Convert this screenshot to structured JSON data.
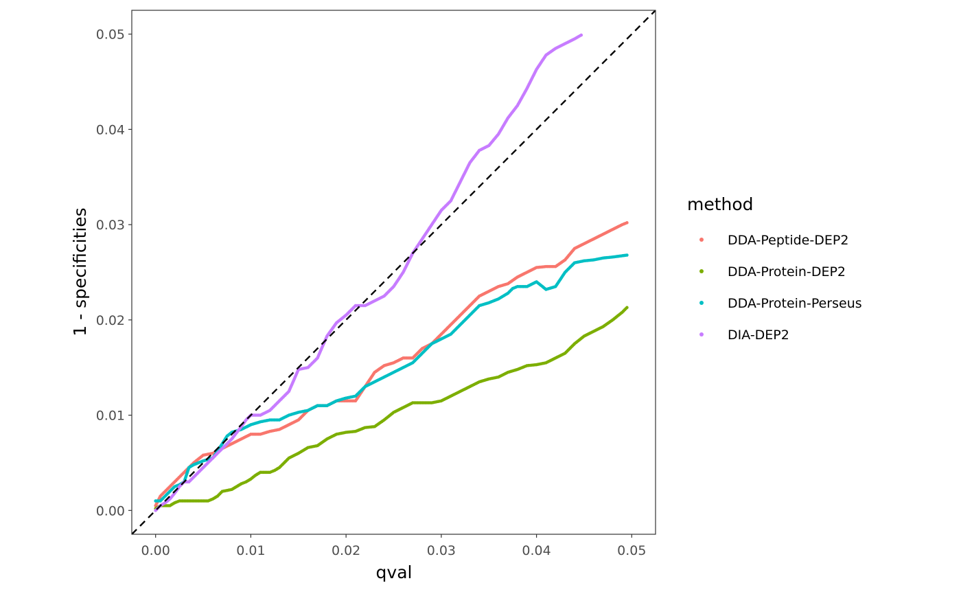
{
  "chart_data": {
    "type": "scatter",
    "xlabel": "qval",
    "ylabel": "1 - specificities",
    "xlim": [
      -0.0025,
      0.0525
    ],
    "ylim": [
      -0.0025,
      0.0525
    ],
    "x_ticks": [
      "0.00",
      "0.01",
      "0.02",
      "0.03",
      "0.04",
      "0.05"
    ],
    "y_ticks": [
      "0.00",
      "0.01",
      "0.02",
      "0.03",
      "0.04",
      "0.05"
    ],
    "grid": false,
    "reference_line": {
      "style": "dashed",
      "color": "#000000",
      "slope": 1,
      "intercept": 0
    },
    "legend": {
      "title": "method",
      "placement": "right"
    },
    "series": [
      {
        "name": "DDA-Peptide-DEP2",
        "color": "#F8766D",
        "points": [
          [
            0,
            0.0005
          ],
          [
            0.0005,
            0.0015
          ],
          [
            0.001,
            0.002
          ],
          [
            0.0015,
            0.0025
          ],
          [
            0.002,
            0.003
          ],
          [
            0.0025,
            0.0035
          ],
          [
            0.003,
            0.004
          ],
          [
            0.0035,
            0.0045
          ],
          [
            0.004,
            0.005
          ],
          [
            0.005,
            0.0058
          ],
          [
            0.006,
            0.006
          ],
          [
            0.0065,
            0.0062
          ],
          [
            0.007,
            0.0065
          ],
          [
            0.008,
            0.007
          ],
          [
            0.009,
            0.0075
          ],
          [
            0.01,
            0.008
          ],
          [
            0.011,
            0.008
          ],
          [
            0.012,
            0.0083
          ],
          [
            0.013,
            0.0085
          ],
          [
            0.014,
            0.009
          ],
          [
            0.015,
            0.0095
          ],
          [
            0.016,
            0.0105
          ],
          [
            0.017,
            0.011
          ],
          [
            0.018,
            0.011
          ],
          [
            0.019,
            0.0115
          ],
          [
            0.02,
            0.0115
          ],
          [
            0.021,
            0.0115
          ],
          [
            0.022,
            0.013
          ],
          [
            0.023,
            0.0145
          ],
          [
            0.024,
            0.0152
          ],
          [
            0.025,
            0.0155
          ],
          [
            0.026,
            0.016
          ],
          [
            0.027,
            0.016
          ],
          [
            0.028,
            0.017
          ],
          [
            0.029,
            0.0175
          ],
          [
            0.03,
            0.0185
          ],
          [
            0.031,
            0.0195
          ],
          [
            0.032,
            0.0205
          ],
          [
            0.033,
            0.0215
          ],
          [
            0.034,
            0.0225
          ],
          [
            0.035,
            0.023
          ],
          [
            0.036,
            0.0235
          ],
          [
            0.037,
            0.0238
          ],
          [
            0.038,
            0.0245
          ],
          [
            0.039,
            0.025
          ],
          [
            0.04,
            0.0255
          ],
          [
            0.041,
            0.0256
          ],
          [
            0.042,
            0.0256
          ],
          [
            0.043,
            0.0263
          ],
          [
            0.044,
            0.0275
          ],
          [
            0.045,
            0.028
          ],
          [
            0.046,
            0.0285
          ],
          [
            0.047,
            0.029
          ],
          [
            0.048,
            0.0295
          ],
          [
            0.049,
            0.03
          ],
          [
            0.0495,
            0.0302
          ]
        ]
      },
      {
        "name": "DDA-Protein-DEP2",
        "color": "#7CAE00",
        "points": [
          [
            0,
            0.0002
          ],
          [
            0.0005,
            0.0005
          ],
          [
            0.0015,
            0.0005
          ],
          [
            0.002,
            0.0008
          ],
          [
            0.0025,
            0.001
          ],
          [
            0.003,
            0.001
          ],
          [
            0.004,
            0.001
          ],
          [
            0.005,
            0.001
          ],
          [
            0.0055,
            0.001
          ],
          [
            0.006,
            0.0012
          ],
          [
            0.0065,
            0.0015
          ],
          [
            0.007,
            0.002
          ],
          [
            0.008,
            0.0022
          ],
          [
            0.0085,
            0.0025
          ],
          [
            0.009,
            0.0028
          ],
          [
            0.0095,
            0.003
          ],
          [
            0.01,
            0.0033
          ],
          [
            0.0105,
            0.0037
          ],
          [
            0.011,
            0.004
          ],
          [
            0.012,
            0.004
          ],
          [
            0.0125,
            0.0042
          ],
          [
            0.013,
            0.0045
          ],
          [
            0.0135,
            0.005
          ],
          [
            0.014,
            0.0055
          ],
          [
            0.015,
            0.006
          ],
          [
            0.016,
            0.0066
          ],
          [
            0.017,
            0.0068
          ],
          [
            0.018,
            0.0075
          ],
          [
            0.019,
            0.008
          ],
          [
            0.02,
            0.0082
          ],
          [
            0.021,
            0.0083
          ],
          [
            0.022,
            0.0087
          ],
          [
            0.023,
            0.0088
          ],
          [
            0.024,
            0.0095
          ],
          [
            0.025,
            0.0103
          ],
          [
            0.026,
            0.0108
          ],
          [
            0.027,
            0.0113
          ],
          [
            0.0275,
            0.0113
          ],
          [
            0.029,
            0.0113
          ],
          [
            0.03,
            0.0115
          ],
          [
            0.031,
            0.012
          ],
          [
            0.032,
            0.0125
          ],
          [
            0.033,
            0.013
          ],
          [
            0.034,
            0.0135
          ],
          [
            0.035,
            0.0138
          ],
          [
            0.036,
            0.014
          ],
          [
            0.037,
            0.0145
          ],
          [
            0.038,
            0.0148
          ],
          [
            0.039,
            0.0152
          ],
          [
            0.04,
            0.0153
          ],
          [
            0.041,
            0.0155
          ],
          [
            0.042,
            0.016
          ],
          [
            0.043,
            0.0165
          ],
          [
            0.044,
            0.0175
          ],
          [
            0.045,
            0.0183
          ],
          [
            0.046,
            0.0188
          ],
          [
            0.047,
            0.0193
          ],
          [
            0.048,
            0.02
          ],
          [
            0.049,
            0.0208
          ],
          [
            0.0495,
            0.0213
          ]
        ]
      },
      {
        "name": "DDA-Protein-Perseus",
        "color": "#00BFC4",
        "points": [
          [
            0,
            0.001
          ],
          [
            0.0005,
            0.001
          ],
          [
            0.001,
            0.0015
          ],
          [
            0.002,
            0.0025
          ],
          [
            0.0025,
            0.0027
          ],
          [
            0.003,
            0.003
          ],
          [
            0.0035,
            0.0045
          ],
          [
            0.004,
            0.0048
          ],
          [
            0.005,
            0.0052
          ],
          [
            0.006,
            0.0055
          ],
          [
            0.007,
            0.007
          ],
          [
            0.0075,
            0.0078
          ],
          [
            0.008,
            0.0082
          ],
          [
            0.009,
            0.0085
          ],
          [
            0.01,
            0.009
          ],
          [
            0.011,
            0.0093
          ],
          [
            0.012,
            0.0095
          ],
          [
            0.013,
            0.0095
          ],
          [
            0.014,
            0.01
          ],
          [
            0.015,
            0.0103
          ],
          [
            0.016,
            0.0105
          ],
          [
            0.017,
            0.011
          ],
          [
            0.018,
            0.011
          ],
          [
            0.019,
            0.0115
          ],
          [
            0.02,
            0.0118
          ],
          [
            0.021,
            0.012
          ],
          [
            0.022,
            0.013
          ],
          [
            0.023,
            0.0135
          ],
          [
            0.024,
            0.014
          ],
          [
            0.025,
            0.0145
          ],
          [
            0.026,
            0.015
          ],
          [
            0.027,
            0.0155
          ],
          [
            0.028,
            0.0165
          ],
          [
            0.029,
            0.0175
          ],
          [
            0.03,
            0.018
          ],
          [
            0.031,
            0.0185
          ],
          [
            0.032,
            0.0195
          ],
          [
            0.033,
            0.0205
          ],
          [
            0.034,
            0.0215
          ],
          [
            0.035,
            0.0218
          ],
          [
            0.036,
            0.0222
          ],
          [
            0.037,
            0.0228
          ],
          [
            0.0375,
            0.0233
          ],
          [
            0.038,
            0.0235
          ],
          [
            0.039,
            0.0235
          ],
          [
            0.04,
            0.024
          ],
          [
            0.041,
            0.0232
          ],
          [
            0.042,
            0.0235
          ],
          [
            0.043,
            0.025
          ],
          [
            0.044,
            0.026
          ],
          [
            0.045,
            0.0262
          ],
          [
            0.046,
            0.0263
          ],
          [
            0.047,
            0.0265
          ],
          [
            0.048,
            0.0266
          ],
          [
            0.0495,
            0.0268
          ]
        ]
      },
      {
        "name": "DIA-DEP2",
        "color": "#C77CFF",
        "points": [
          [
            0,
            0
          ],
          [
            0.0005,
            0.0005
          ],
          [
            0.001,
            0.0008
          ],
          [
            0.0015,
            0.0012
          ],
          [
            0.002,
            0.0018
          ],
          [
            0.0025,
            0.0025
          ],
          [
            0.003,
            0.003
          ],
          [
            0.0035,
            0.003
          ],
          [
            0.004,
            0.0035
          ],
          [
            0.005,
            0.0045
          ],
          [
            0.006,
            0.0055
          ],
          [
            0.007,
            0.0065
          ],
          [
            0.008,
            0.0075
          ],
          [
            0.009,
            0.0088
          ],
          [
            0.0095,
            0.0095
          ],
          [
            0.01,
            0.01
          ],
          [
            0.011,
            0.01
          ],
          [
            0.012,
            0.0105
          ],
          [
            0.013,
            0.0115
          ],
          [
            0.014,
            0.0125
          ],
          [
            0.015,
            0.0148
          ],
          [
            0.016,
            0.015
          ],
          [
            0.017,
            0.016
          ],
          [
            0.018,
            0.0183
          ],
          [
            0.019,
            0.0197
          ],
          [
            0.02,
            0.0205
          ],
          [
            0.021,
            0.0215
          ],
          [
            0.022,
            0.0215
          ],
          [
            0.023,
            0.022
          ],
          [
            0.024,
            0.0225
          ],
          [
            0.025,
            0.0235
          ],
          [
            0.026,
            0.025
          ],
          [
            0.027,
            0.027
          ],
          [
            0.028,
            0.0285
          ],
          [
            0.029,
            0.03
          ],
          [
            0.03,
            0.0315
          ],
          [
            0.031,
            0.0325
          ],
          [
            0.032,
            0.0345
          ],
          [
            0.033,
            0.0365
          ],
          [
            0.034,
            0.0378
          ],
          [
            0.035,
            0.0383
          ],
          [
            0.036,
            0.0395
          ],
          [
            0.037,
            0.0412
          ],
          [
            0.038,
            0.0425
          ],
          [
            0.039,
            0.0443
          ],
          [
            0.04,
            0.0463
          ],
          [
            0.041,
            0.0478
          ],
          [
            0.042,
            0.0485
          ],
          [
            0.043,
            0.049
          ],
          [
            0.044,
            0.0495
          ],
          [
            0.0447,
            0.0499
          ]
        ]
      }
    ]
  }
}
